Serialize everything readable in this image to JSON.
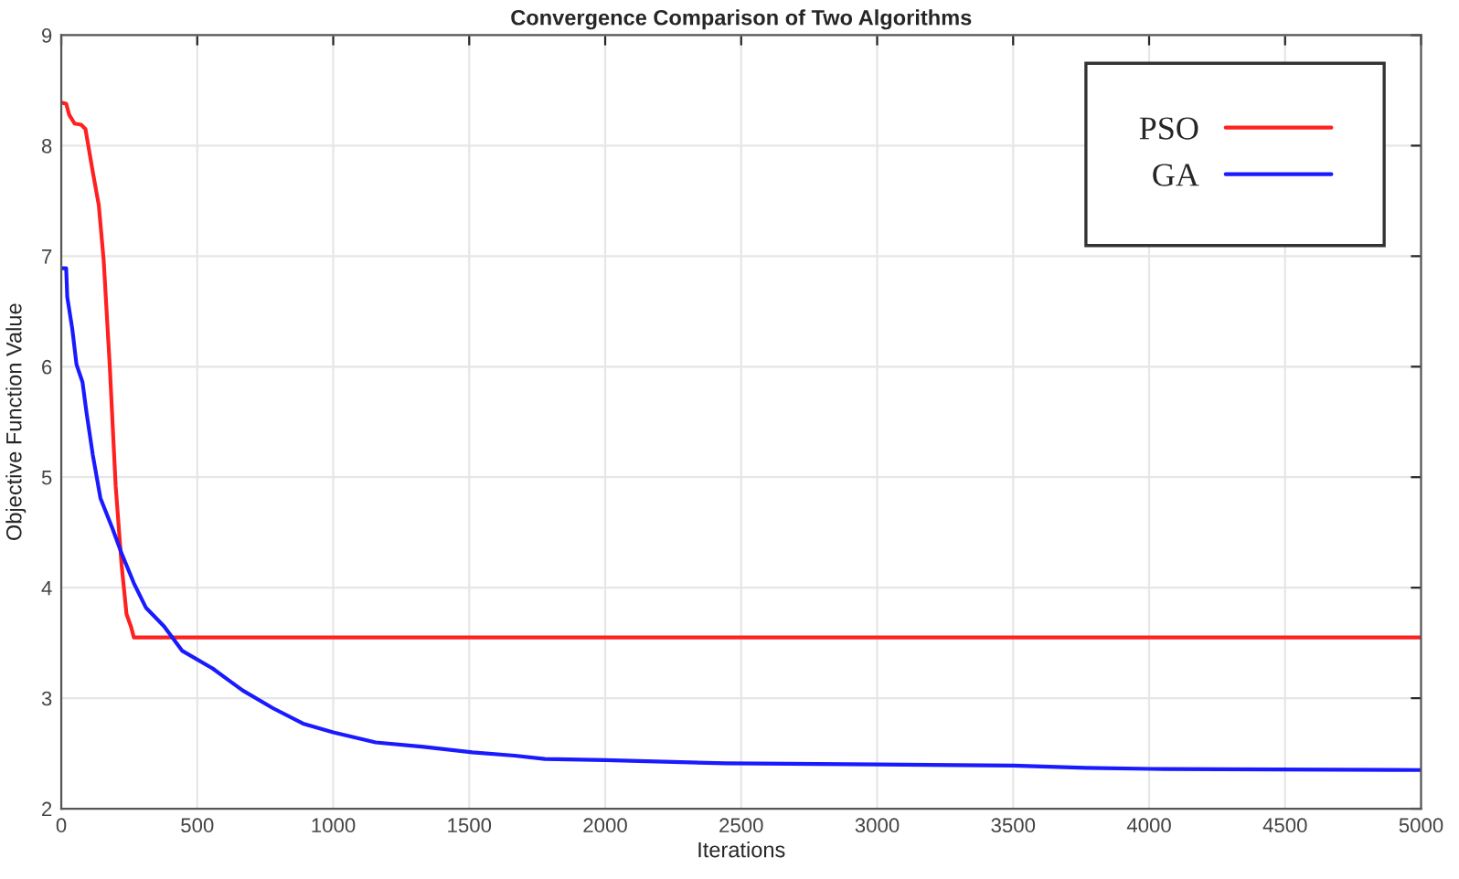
{
  "chart_data": {
    "type": "line",
    "title": "Convergence Comparison of Two Algorithms",
    "xlabel": "Iterations",
    "ylabel": "Objective Function Value",
    "xlim": [
      0,
      5000
    ],
    "xticks": [
      0,
      500,
      1000,
      1500,
      2000,
      2500,
      3000,
      3500,
      4000,
      4500,
      5000
    ],
    "ylim": [
      2,
      9
    ],
    "yticks": [
      2,
      3,
      4,
      5,
      6,
      7,
      8,
      9
    ],
    "grid": true,
    "legend": "top right",
    "line_style": "solid",
    "series": [
      {
        "name": "PSO",
        "color": "#ff2020",
        "x": [
          0,
          18,
          29,
          49,
          73,
          89,
          116,
          138,
          156,
          178,
          200,
          222,
          240,
          256,
          267,
          1000,
          2000,
          3000,
          4000,
          5000
        ],
        "values": [
          8.39,
          8.38,
          8.28,
          8.2,
          8.19,
          8.15,
          7.76,
          7.46,
          6.96,
          6.02,
          4.92,
          4.2,
          3.76,
          3.65,
          3.55,
          3.55,
          3.55,
          3.55,
          3.55,
          3.55
        ]
      },
      {
        "name": "GA",
        "color": "#1a1aff",
        "x": [
          0,
          18,
          22,
          40,
          56,
          78,
          93,
          116,
          144,
          189,
          222,
          267,
          311,
          378,
          444,
          556,
          667,
          778,
          889,
          1000,
          1156,
          1333,
          1511,
          1667,
          1778,
          2000,
          2444,
          3000,
          3500,
          3767,
          4011,
          5000
        ],
        "values": [
          6.89,
          6.89,
          6.63,
          6.35,
          6.02,
          5.86,
          5.58,
          5.2,
          4.81,
          4.53,
          4.31,
          4.04,
          3.82,
          3.65,
          3.43,
          3.27,
          3.07,
          2.91,
          2.77,
          2.69,
          2.6,
          2.56,
          2.51,
          2.48,
          2.45,
          2.44,
          2.41,
          2.4,
          2.39,
          2.37,
          2.36,
          2.35
        ]
      }
    ]
  }
}
